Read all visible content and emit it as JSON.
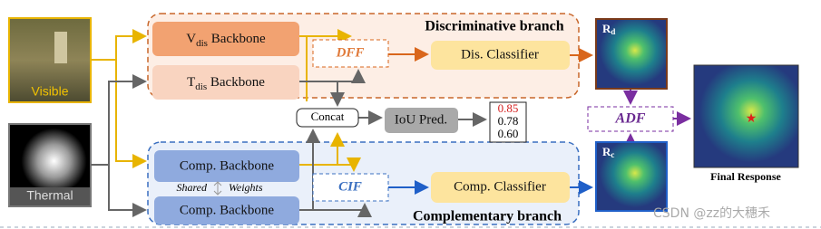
{
  "inputs": {
    "visible": "Visible",
    "thermal": "Thermal"
  },
  "branches": {
    "discriminative": "Discriminative branch",
    "complementary": "Complementary branch"
  },
  "nodes": {
    "v_backbone": {
      "main": "V",
      "sub": "dis",
      "rest": " Backbone"
    },
    "t_backbone": {
      "main": "T",
      "sub": "dis",
      "rest": " Backbone"
    },
    "comp_backbone_1": "Comp. Backbone",
    "comp_backbone_2": "Comp. Backbone",
    "shared": "Shared",
    "weights": "Weights",
    "dff": "DFF",
    "cif": "CIF",
    "concat": "Concat",
    "iou": "IoU Pred.",
    "dis_classifier": "Dis. Classifier",
    "comp_classifier": "Comp. Classifier",
    "adf": "ADF"
  },
  "iou_scores": [
    "0.85",
    "0.78",
    "0.60"
  ],
  "responses": {
    "rd": {
      "main": "R",
      "sub": "d"
    },
    "rc": {
      "main": "R",
      "sub": "c"
    },
    "final": "Final Response"
  },
  "watermark": "CSDN @zz的大穗禾"
}
